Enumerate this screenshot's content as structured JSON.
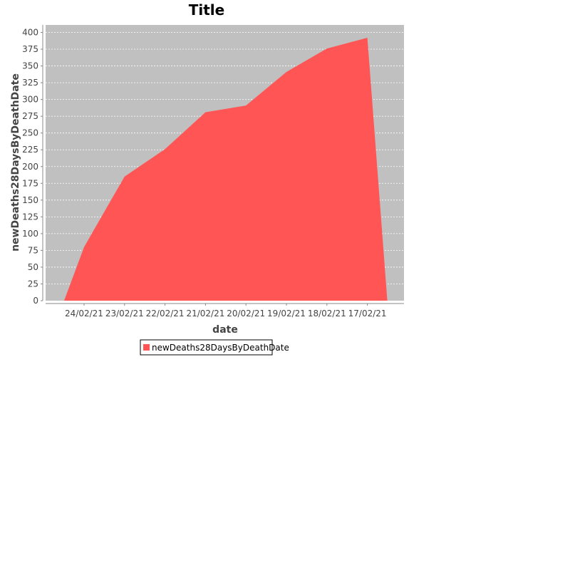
{
  "chart_data": {
    "type": "area",
    "title": "Title",
    "xlabel": "date",
    "ylabel": "newDeaths28DaysByDeathDate",
    "categories": [
      "24/02/21",
      "23/02/21",
      "22/02/21",
      "21/02/21",
      "20/02/21",
      "19/02/21",
      "18/02/21",
      "17/02/21"
    ],
    "series": [
      {
        "name": "newDeaths28DaysByDeathDate",
        "values": [
          80,
          185,
          226,
          281,
          291,
          341,
          376,
          392
        ],
        "color": "#ff5555"
      }
    ],
    "ylim": [
      0,
      400
    ],
    "yticks": [
      0,
      25,
      50,
      75,
      100,
      125,
      150,
      175,
      200,
      225,
      250,
      275,
      300,
      325,
      350,
      375,
      400
    ],
    "grid": true,
    "plot_background": "#c0c0c0",
    "legend_position": "bottom"
  }
}
